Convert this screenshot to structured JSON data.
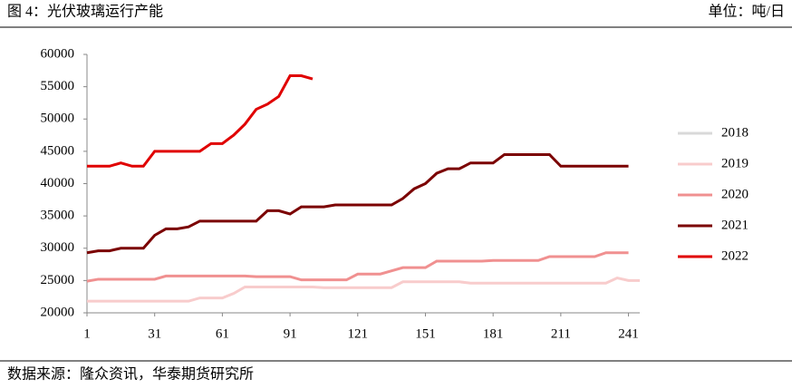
{
  "header": {
    "title": "图 4：光伏玻璃运行产能",
    "unit": "单位：吨/日"
  },
  "footer": {
    "source": "数据来源：隆众资讯，华泰期货研究所"
  },
  "chart_data": {
    "type": "line",
    "x": [
      1,
      6,
      11,
      16,
      21,
      26,
      31,
      36,
      41,
      46,
      51,
      56,
      61,
      66,
      71,
      76,
      81,
      86,
      91,
      96,
      101,
      106,
      111,
      116,
      121,
      126,
      131,
      136,
      141,
      146,
      151,
      156,
      161,
      166,
      171,
      176,
      181,
      186,
      191,
      196,
      201,
      206,
      211,
      216,
      221,
      226,
      231,
      236,
      241,
      246
    ],
    "xlim": [
      1,
      246
    ],
    "xticks": [
      1,
      31,
      61,
      91,
      121,
      151,
      181,
      211,
      241
    ],
    "ylim": [
      20000,
      60000
    ],
    "yticks": [
      20000,
      25000,
      30000,
      35000,
      40000,
      45000,
      50000,
      55000,
      60000
    ],
    "grid": false,
    "legend": "right",
    "series": [
      {
        "name": "2018",
        "color": "#d9d9d9",
        "values": [
          null,
          null,
          null,
          null,
          null,
          null,
          null,
          null,
          null,
          null,
          null,
          null,
          null,
          null,
          null,
          null,
          null,
          null,
          null,
          null,
          null,
          null,
          null,
          null,
          null,
          null,
          null,
          null,
          null,
          null,
          null,
          null,
          null,
          null,
          null,
          null,
          null,
          null,
          null,
          null,
          null,
          null,
          null,
          null,
          null,
          null,
          null,
          null,
          null,
          null
        ]
      },
      {
        "name": "2019",
        "color": "#f8cccc",
        "values": [
          21800,
          21800,
          21800,
          21800,
          21800,
          21800,
          21800,
          21800,
          21800,
          21800,
          22300,
          22300,
          22300,
          23000,
          24000,
          24000,
          24000,
          24000,
          24000,
          24000,
          24000,
          23900,
          23900,
          23900,
          23900,
          23900,
          23900,
          23900,
          24800,
          24800,
          24800,
          24800,
          24800,
          24800,
          24600,
          24600,
          24600,
          24600,
          24600,
          24600,
          24600,
          24600,
          24600,
          24600,
          24600,
          24600,
          24600,
          25400,
          25000,
          25000
        ]
      },
      {
        "name": "2020",
        "color": "#f09090",
        "values": [
          24900,
          25200,
          25200,
          25200,
          25200,
          25200,
          25200,
          25700,
          25700,
          25700,
          25700,
          25700,
          25700,
          25700,
          25700,
          25600,
          25600,
          25600,
          25600,
          25100,
          25100,
          25100,
          25100,
          25100,
          26000,
          26000,
          26000,
          26500,
          27000,
          27000,
          27000,
          28000,
          28000,
          28000,
          28000,
          28000,
          28100,
          28100,
          28100,
          28100,
          28100,
          28700,
          28700,
          28700,
          28700,
          28700,
          29300,
          29300,
          29300,
          null
        ]
      },
      {
        "name": "2021",
        "color": "#7b0000",
        "values": [
          29300,
          29600,
          29600,
          30000,
          30000,
          30000,
          32000,
          33000,
          33000,
          33300,
          34200,
          34200,
          34200,
          34200,
          34200,
          34200,
          35800,
          35800,
          35300,
          36400,
          36400,
          36400,
          36700,
          36700,
          36700,
          36700,
          36700,
          36700,
          37700,
          39200,
          40000,
          41600,
          42300,
          42300,
          43200,
          43200,
          43200,
          44500,
          44500,
          44500,
          44500,
          44500,
          42700,
          42700,
          42700,
          42700,
          42700,
          42700,
          42700,
          null
        ]
      },
      {
        "name": "2022",
        "color": "#e00000",
        "values": [
          42700,
          42700,
          42700,
          43200,
          42700,
          42700,
          45000,
          45000,
          45000,
          45000,
          45000,
          46200,
          46200,
          47500,
          49200,
          51500,
          52300,
          53500,
          56700,
          56700,
          56200,
          null,
          null,
          null,
          null,
          null,
          null,
          null,
          null,
          null,
          null,
          null,
          null,
          null,
          null,
          null,
          null,
          null,
          null,
          null,
          null,
          null,
          null,
          null,
          null,
          null,
          null,
          null,
          null,
          null
        ]
      }
    ]
  }
}
